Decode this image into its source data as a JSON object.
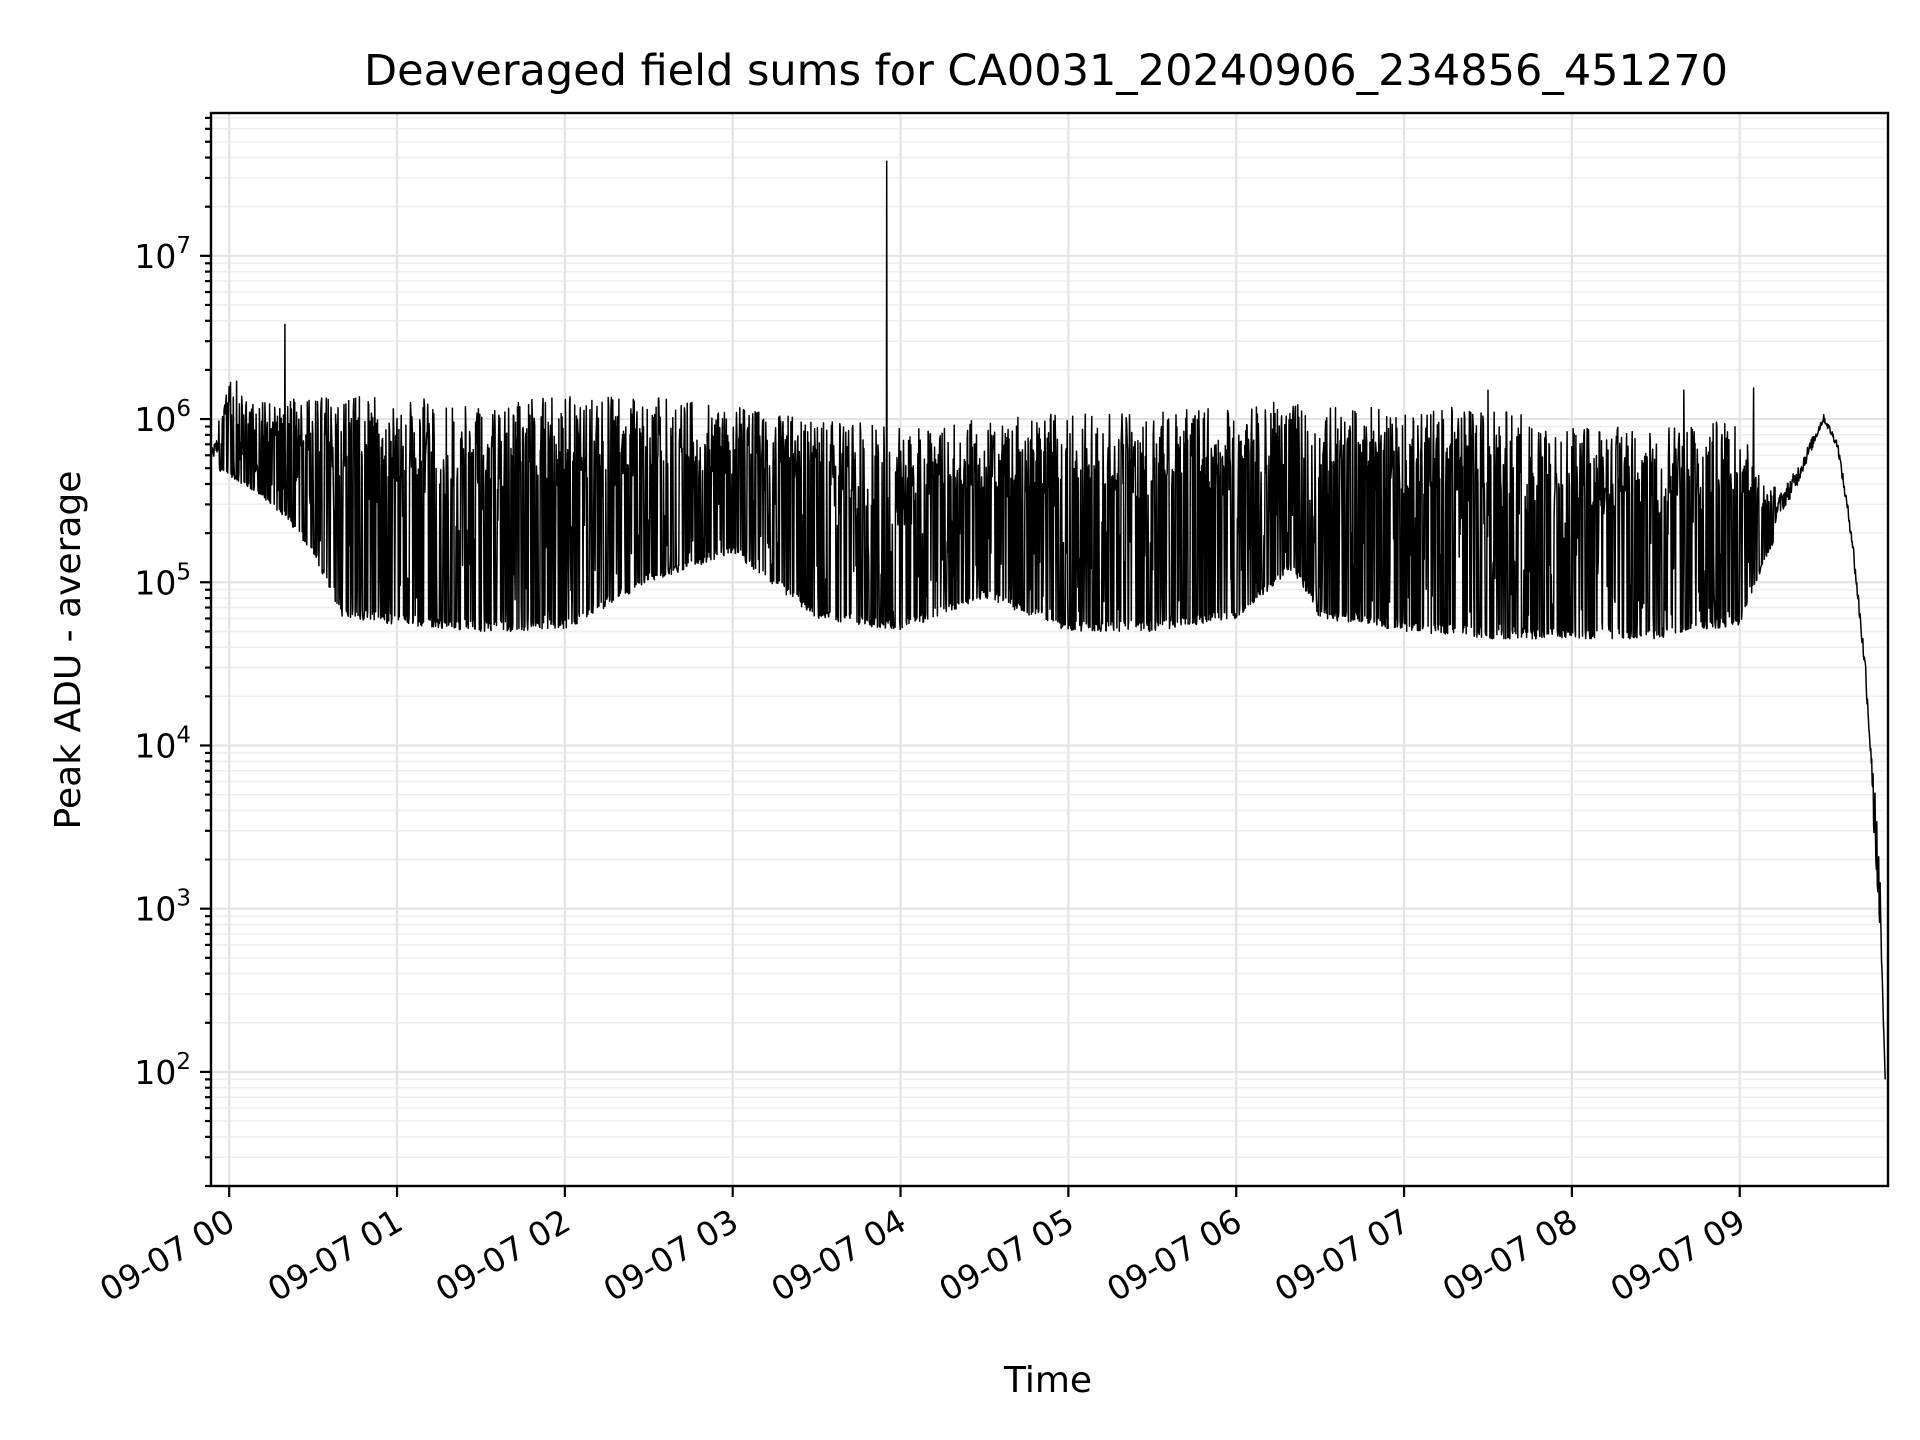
{
  "chart_data": {
    "type": "line",
    "title": "Deaveraged field sums for CA0031_20240906_234856_451270",
    "xlabel": "Time",
    "ylabel": "Peak ADU - average",
    "yscale": "log",
    "ylim": [
      20,
      75000000
    ],
    "xlim": [
      "09-06 23:53:30",
      "09-07 09:53:00"
    ],
    "grid": true,
    "line_color": "#000000",
    "x_ticks": [
      {
        "label": "09-07 00",
        "time": "09-07 00:00"
      },
      {
        "label": "09-07 01",
        "time": "09-07 01:00"
      },
      {
        "label": "09-07 02",
        "time": "09-07 02:00"
      },
      {
        "label": "09-07 03",
        "time": "09-07 03:00"
      },
      {
        "label": "09-07 04",
        "time": "09-07 04:00"
      },
      {
        "label": "09-07 05",
        "time": "09-07 05:00"
      },
      {
        "label": "09-07 06",
        "time": "09-07 06:00"
      },
      {
        "label": "09-07 07",
        "time": "09-07 07:00"
      },
      {
        "label": "09-07 08",
        "time": "09-07 08:00"
      },
      {
        "label": "09-07 09",
        "time": "09-07 09:00"
      }
    ],
    "y_ticks": [
      {
        "base": "10",
        "exp": "2",
        "value": 100
      },
      {
        "base": "10",
        "exp": "3",
        "value": 1000
      },
      {
        "base": "10",
        "exp": "4",
        "value": 10000
      },
      {
        "base": "10",
        "exp": "5",
        "value": 100000
      },
      {
        "base": "10",
        "exp": "6",
        "value": 1000000
      },
      {
        "base": "10",
        "exp": "7",
        "value": 10000000
      }
    ],
    "series": [
      {
        "color": "#000000",
        "envelope": [
          {
            "time": "09-06 23:53:30",
            "high": 700000,
            "low": 500000
          },
          {
            "time": "09-07 00:00",
            "high": 1900000,
            "low": 450000
          },
          {
            "time": "09-07 00:10",
            "high": 1300000,
            "low": 350000
          },
          {
            "time": "09-07 00:20",
            "high": 1300000,
            "low": 250000
          },
          {
            "time": "09-07 00:30",
            "high": 1400000,
            "low": 150000
          },
          {
            "time": "09-07 00:40",
            "high": 1400000,
            "low": 60000
          },
          {
            "time": "09-07 01:00",
            "high": 1400000,
            "low": 55000
          },
          {
            "time": "09-07 01:30",
            "high": 1200000,
            "low": 50000
          },
          {
            "time": "09-07 02:00",
            "high": 1400000,
            "low": 50000
          },
          {
            "time": "09-07 02:30",
            "high": 1400000,
            "low": 100000
          },
          {
            "time": "09-07 03:00",
            "high": 1200000,
            "low": 150000
          },
          {
            "time": "09-07 03:30",
            "high": 1000000,
            "low": 60000
          },
          {
            "time": "09-07 04:00",
            "high": 900000,
            "low": 50000
          },
          {
            "time": "09-07 04:30",
            "high": 1000000,
            "low": 80000
          },
          {
            "time": "09-07 05:00",
            "high": 1100000,
            "low": 50000
          },
          {
            "time": "09-07 05:30",
            "high": 1100000,
            "low": 50000
          },
          {
            "time": "09-07 06:00",
            "high": 1200000,
            "low": 60000
          },
          {
            "time": "09-07 06:20",
            "high": 1300000,
            "low": 120000
          },
          {
            "time": "09-07 06:30",
            "high": 1200000,
            "low": 60000
          },
          {
            "time": "09-07 07:00",
            "high": 1200000,
            "low": 50000
          },
          {
            "time": "09-07 07:30",
            "high": 1200000,
            "low": 45000
          },
          {
            "time": "09-07 08:00",
            "high": 900000,
            "low": 45000
          },
          {
            "time": "09-07 08:30",
            "high": 900000,
            "low": 45000
          },
          {
            "time": "09-07 09:00",
            "high": 1000000,
            "low": 55000
          },
          {
            "time": "09-07 09:10",
            "high": 350000,
            "low": 150000
          },
          {
            "time": "09-07 09:20",
            "high": 600000,
            "low": 300000
          },
          {
            "time": "09-07 09:30",
            "high": 1150000,
            "low": 900000
          },
          {
            "time": "09-07 09:35",
            "high": 800000,
            "low": 600000
          },
          {
            "time": "09-07 09:40",
            "high": 250000,
            "low": 150000
          },
          {
            "time": "09-07 09:45",
            "high": 40000,
            "low": 20000
          },
          {
            "time": "09-07 09:50",
            "high": 2000,
            "low": 800
          },
          {
            "time": "09-07 09:52",
            "high": 90,
            "low": 90
          }
        ],
        "spikes": [
          {
            "time": "09-07 00:20",
            "value": 3800000
          },
          {
            "time": "09-07 03:55",
            "value": 38000000
          },
          {
            "time": "09-07 07:30",
            "value": 1500000
          },
          {
            "time": "09-07 08:40",
            "value": 1500000
          },
          {
            "time": "09-07 09:05",
            "value": 1550000
          }
        ]
      }
    ]
  }
}
